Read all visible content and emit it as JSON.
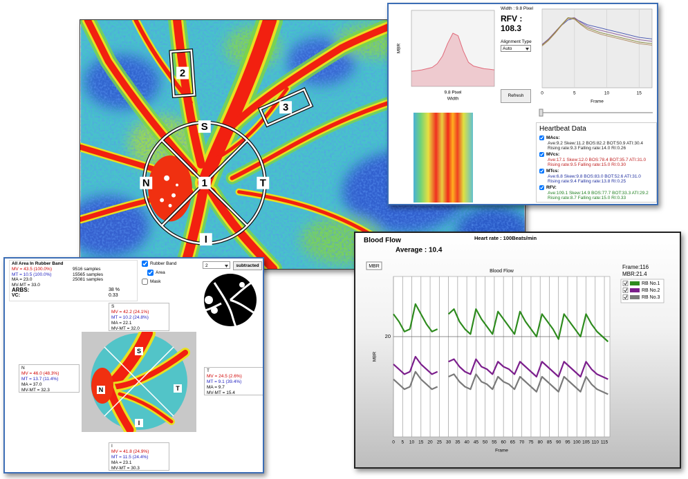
{
  "fundus_image": {
    "labels": [
      "1",
      "2",
      "3",
      "S",
      "N",
      "T",
      "I"
    ]
  },
  "profile_window": {
    "width_text": "Width : 9.8 Pixel",
    "rfv_label": "RFV :",
    "rfv_value": 108.3,
    "alignment_label": "Alignment Type",
    "alignment_value": "Auto",
    "refresh": "Refresh",
    "profile_chart": {
      "type": "area",
      "y_label": "MBR",
      "subtitle": "9.8 Pixel",
      "x_label": "Width",
      "color": "#e06a7a",
      "values": [
        6,
        6.2,
        6.5,
        7,
        7.5,
        9,
        12,
        17,
        21,
        20,
        14,
        9.5,
        8,
        7.5,
        7,
        6.8,
        6.5
      ],
      "ylim": [
        0,
        30
      ]
    },
    "frame_chart": {
      "type": "line",
      "x_label": "Frame",
      "x": [
        0,
        1,
        2,
        3,
        4,
        5,
        6,
        7,
        8,
        9,
        10,
        11,
        12,
        13,
        14,
        15,
        16,
        17
      ],
      "xlim": [
        0,
        17
      ],
      "xticks": [
        0,
        5,
        10,
        15
      ],
      "ylim": [
        0,
        100
      ],
      "series": [
        {
          "color": "#4050b0",
          "values": [
            55,
            62,
            70,
            79,
            86,
            88,
            84,
            80,
            78,
            76,
            74,
            72,
            70,
            68,
            66,
            64,
            63,
            62
          ]
        },
        {
          "color": "#8a5a9a",
          "values": [
            55,
            62,
            71,
            80,
            88,
            89,
            83,
            78,
            75,
            73,
            71,
            69,
            67,
            65,
            63,
            61,
            60,
            59
          ]
        },
        {
          "color": "#8a8a3a",
          "values": [
            54,
            61,
            70,
            80,
            89,
            88,
            81,
            76,
            73,
            70,
            68,
            66,
            64,
            62,
            60,
            58,
            57,
            56
          ]
        },
        {
          "color": "#b08a60",
          "values": [
            53,
            60,
            69,
            79,
            88,
            87,
            80,
            74,
            71,
            68,
            66,
            64,
            62,
            60,
            58,
            56,
            55,
            54
          ]
        }
      ]
    },
    "heartbeat": {
      "title": "Heartbeat Data",
      "entries": [
        {
          "name": "MAcs:",
          "color": "#222222",
          "lines": [
            "Ave:9.2  Skew:11.2  BOS:82.2  BOT:50.9  ATI:30.4",
            "Rising rate:9.3  Falling rate:14.0  RI:0.26"
          ]
        },
        {
          "name": "MVcs:",
          "color": "#c02020",
          "lines": [
            "Ave:17.1  Skew:12.0  BOS:78.4  BOT:35.7  ATI:31.0",
            "Rising rate:9.5  Falling rate:15.0  RI:0.30"
          ]
        },
        {
          "name": "MTcs:",
          "color": "#2030a0",
          "lines": [
            "Ave:6.8  Skew:9.8  BOS:83.0  BOT:52.6  ATI:31.0",
            "Rising rate:9.4  Falling rate:13.8  RI:0.25"
          ]
        },
        {
          "name": "RFV:",
          "color": "#208020",
          "lines": [
            "Ave:109.1  Skew:14.9  BOS:77.7  BOT:33.3  ATI:29.2",
            "Rising rate:8.7  Falling rate:15.0  RI:0.33"
          ]
        }
      ]
    }
  },
  "region_window": {
    "summary": {
      "title": "All Area In Rubber Band",
      "rows": [
        {
          "text": "MV = 43.5 (100.0%)",
          "samples": "9516 samples"
        },
        {
          "text": "MT = 10.5 (100.0%)",
          "samples": "15565 samples"
        },
        {
          "text": "MA = 23.0",
          "samples": "25081 samples"
        },
        {
          "text": "MV-MT = 33.0"
        }
      ],
      "arbs_label": "ARBS:",
      "arbs_value": "38 %",
      "vc_label": "VC:",
      "vc_value": 0.33
    },
    "controls": {
      "rubber_band": "Rubber Band",
      "area": "Area",
      "mask": "Mask",
      "selection": 2,
      "button": "subtracted"
    },
    "sectors": [
      {
        "name": "S",
        "lines": [
          "MV = 42.2 (24.1%)",
          "MT = 10.2 (24.8%)",
          "MA = 22.1",
          "MV-MT = 32.0"
        ]
      },
      {
        "name": "N",
        "lines": [
          "MV = 46.0 (48.3%)",
          "MT = 13.7 (11.4%)",
          "MA = 37.0",
          "MV-MT = 32.3"
        ]
      },
      {
        "name": "T",
        "lines": [
          "MV = 24.5 (2.6%)",
          "MT = 9.1 (39.4%)",
          "MA = 9.7",
          "MV-MT = 15.4"
        ]
      },
      {
        "name": "I",
        "lines": [
          "MV = 41.8 (24.9%)",
          "MT = 11.5 (24.4%)",
          "MA = 23.1",
          "MV-MT = 30.3"
        ]
      }
    ]
  },
  "blood_flow_window": {
    "title": "Blood Flow",
    "average": "Average : 10.4",
    "heart_rate": "Heart rate : 100Beats/min",
    "unit_box": "MBR",
    "readout": [
      "Frame:116",
      "MBR:21.4"
    ],
    "chart": {
      "type": "line",
      "title": "Blood Flow",
      "y_label": "MBR",
      "x_label": "Frame",
      "x": [
        0,
        3,
        6,
        9,
        12,
        15,
        18,
        21,
        24,
        27,
        30,
        33,
        36,
        39,
        42,
        45,
        48,
        51,
        54,
        57,
        60,
        63,
        66,
        69,
        72,
        75,
        78,
        81,
        84,
        87,
        90,
        93,
        96,
        99,
        102,
        105,
        108,
        111,
        114,
        117
      ],
      "xlim": [
        0,
        118
      ],
      "xticks": [
        0,
        5,
        10,
        15,
        20,
        25,
        30,
        35,
        40,
        45,
        50,
        55,
        60,
        65,
        70,
        75,
        80,
        85,
        90,
        95,
        100,
        105,
        110,
        115
      ],
      "ylim": [
        0,
        32
      ],
      "yticks": [
        20
      ],
      "grid": true,
      "series": [
        {
          "name": "RB No.1",
          "color": "#2e8b1e",
          "values": [
            24.5,
            23,
            21,
            21.5,
            26.5,
            24.5,
            22.5,
            21,
            21.5,
            null,
            24.5,
            25.5,
            23,
            21.5,
            20.5,
            25.5,
            23.5,
            22,
            20.5,
            25,
            23.5,
            22,
            20.5,
            25,
            23,
            21.5,
            20,
            24.5,
            23,
            21.5,
            19.5,
            24.5,
            23,
            21.5,
            20,
            24.5,
            22.5,
            21,
            20,
            19
          ]
        },
        {
          "name": "RB No.2",
          "color": "#7b1e8c",
          "values": [
            14.5,
            13.5,
            12.5,
            13,
            16,
            14.5,
            13.5,
            12.5,
            13,
            null,
            15,
            15.5,
            14,
            13,
            12.5,
            15.5,
            14,
            13.5,
            12.5,
            15,
            14,
            13.5,
            12.5,
            15,
            14,
            13,
            12,
            15,
            14,
            13,
            12,
            15,
            14,
            13,
            12,
            15,
            13.5,
            12.5,
            12,
            11.5
          ]
        },
        {
          "name": "RB No.3",
          "color": "#7a7a7a",
          "values": [
            11.5,
            10.5,
            9.5,
            10,
            13,
            11.5,
            10.5,
            9.5,
            10,
            null,
            12,
            12.5,
            11,
            10,
            9.5,
            12.5,
            11,
            10.5,
            9.5,
            12,
            11,
            10.5,
            9.5,
            12,
            11,
            10,
            9,
            12,
            11,
            10,
            9,
            12,
            11,
            10,
            9,
            12,
            10.5,
            9.5,
            9,
            8.5
          ]
        }
      ]
    }
  }
}
